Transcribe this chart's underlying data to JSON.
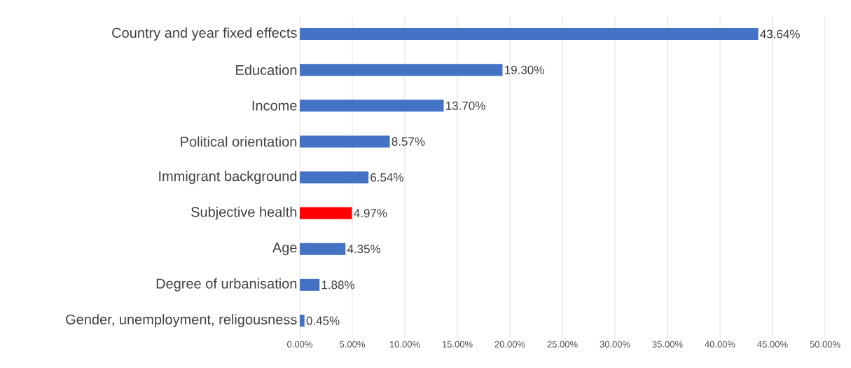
{
  "chart_data": {
    "type": "bar",
    "orientation": "horizontal",
    "categories": [
      "Country and year fixed effects",
      "Education",
      "Income",
      "Political orientation",
      "Immigrant background",
      "Subjective health",
      "Age",
      "Degree of urbanisation",
      "Gender, unemployment, religousness"
    ],
    "values": [
      43.64,
      19.3,
      13.7,
      8.57,
      6.54,
      4.97,
      4.35,
      1.88,
      0.45
    ],
    "value_labels": [
      "43.64%",
      "19.30%",
      "13.70%",
      "8.57%",
      "6.54%",
      "4.97%",
      "4.35%",
      "1.88%",
      "0.45%"
    ],
    "colors": [
      "#4472c4",
      "#4472c4",
      "#4472c4",
      "#4472c4",
      "#4472c4",
      "#ff0000",
      "#4472c4",
      "#4472c4",
      "#4472c4"
    ],
    "xlim": [
      0,
      50
    ],
    "xticks": [
      {
        "value": 0,
        "label": "0.00%"
      },
      {
        "value": 5,
        "label": "5.00%"
      },
      {
        "value": 10,
        "label": "10.00%"
      },
      {
        "value": 15,
        "label": "15.00%"
      },
      {
        "value": 20,
        "label": "20.00%"
      },
      {
        "value": 25,
        "label": "25.00%"
      },
      {
        "value": 30,
        "label": "30.00%"
      },
      {
        "value": 35,
        "label": "35.00%"
      },
      {
        "value": 40,
        "label": "40.00%"
      },
      {
        "value": 45,
        "label": "45.00%"
      },
      {
        "value": 50,
        "label": "50.00%"
      }
    ],
    "grid": "x"
  }
}
